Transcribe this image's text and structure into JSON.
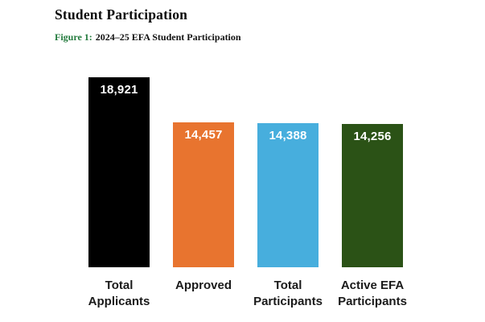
{
  "page": {
    "title": "Student Participation"
  },
  "figure": {
    "label": "Figure 1:",
    "caption": "2024–25 EFA Student Participation",
    "label_color": "#227a3c"
  },
  "chart_data": {
    "type": "bar",
    "title": "Student Participation",
    "subtitle": "Figure 1: 2024–25 EFA Student Participation",
    "categories": [
      "Total Applicants",
      "Approved",
      "Total Participants",
      "Active EFA Participants"
    ],
    "values": [
      18921,
      14457,
      14388,
      14256
    ],
    "value_labels": [
      "18,921",
      "14,457",
      "14,388",
      "14,256"
    ],
    "colors": [
      "#000000",
      "#e8742f",
      "#47aedd",
      "#2b5216"
    ],
    "value_label_color": "#ffffff",
    "xlabel": "",
    "ylabel": "",
    "ylim": [
      0,
      18921
    ],
    "grid": false,
    "legend_position": "none"
  }
}
